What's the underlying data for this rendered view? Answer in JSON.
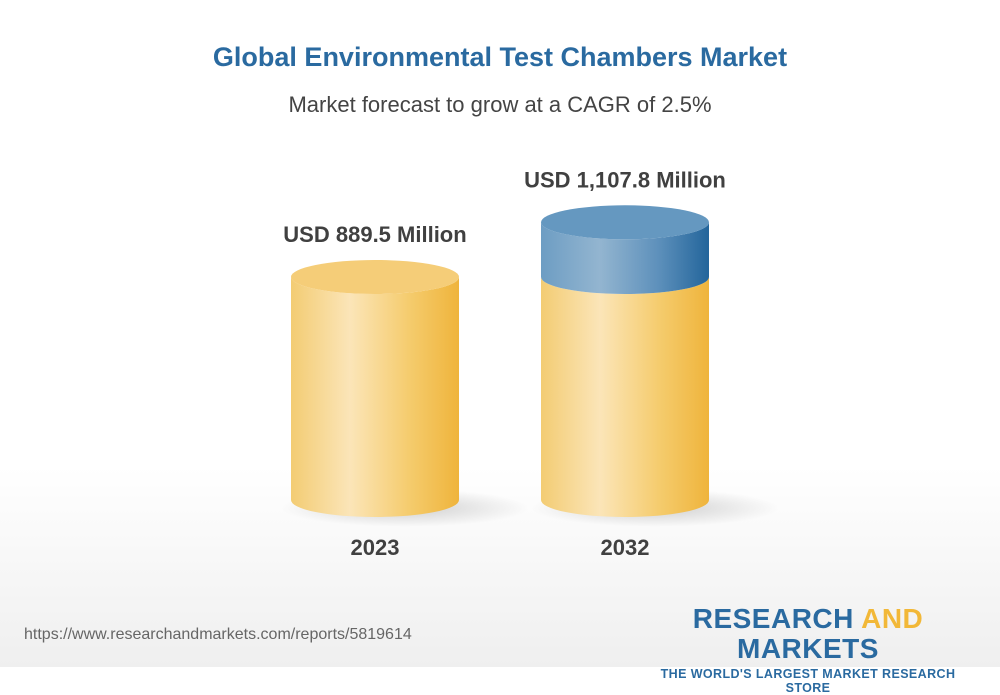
{
  "chart_data": {
    "type": "bar",
    "style": "3d-cylinder",
    "title": "Global Environmental Test Chambers Market",
    "subtitle": "Market forecast to grow at a CAGR of 2.5%",
    "categories": [
      "2023",
      "2032"
    ],
    "values": [
      889.5,
      1107.8
    ],
    "data_labels": [
      "USD 889.5 Million",
      "USD 1,107.8 Million"
    ],
    "unit": "USD Million",
    "colors": {
      "base": "#f2c55c",
      "growth": "#3f7fb0"
    }
  },
  "footer": {
    "url": "https://www.researchandmarkets.com/reports/5819614",
    "logo_part1": "RESEARCH ",
    "logo_part2": "AND",
    "logo_part3": " MARKETS",
    "tagline": "THE WORLD'S LARGEST MARKET RESEARCH STORE"
  }
}
